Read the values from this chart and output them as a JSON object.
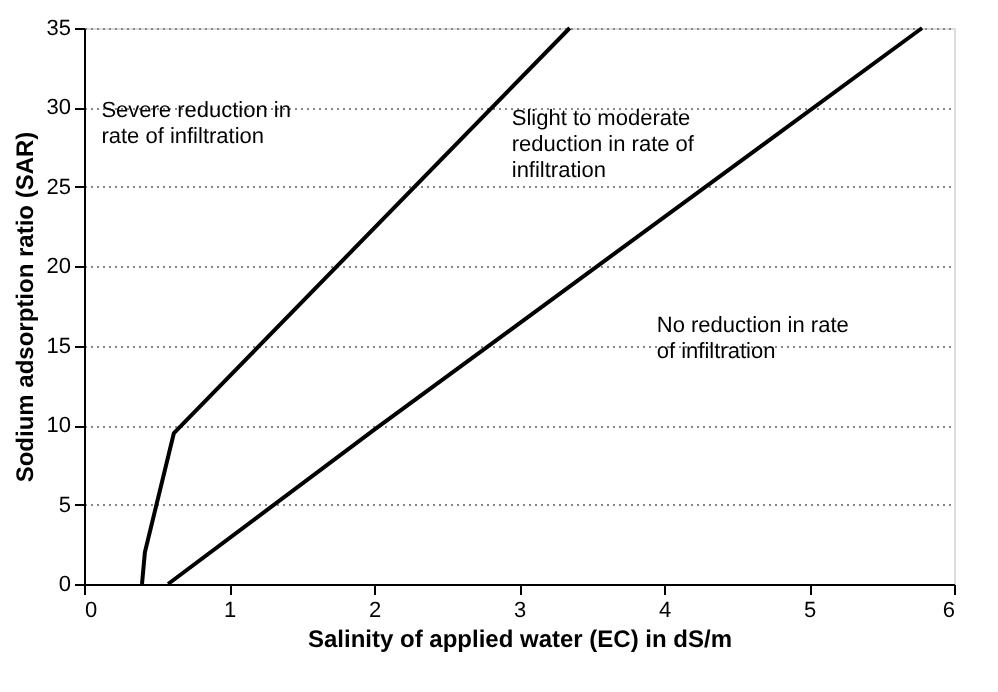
{
  "chart_data": {
    "type": "line",
    "xlabel": "Salinity of applied water (EC) in dS/m",
    "ylabel": "Sodium adsorption ratio (SAR)",
    "xlim": [
      0,
      6
    ],
    "ylim": [
      0,
      35
    ],
    "xticks": [
      0,
      1,
      2,
      3,
      4,
      5,
      6
    ],
    "yticks": [
      0,
      5,
      10,
      15,
      20,
      25,
      30,
      35
    ],
    "grid": "y",
    "marker": "none",
    "line_style": "solid",
    "series": [
      {
        "color": "#000000",
        "x": [
          0.4,
          0.42,
          0.62,
          3.35
        ],
        "values": [
          0,
          2,
          9.5,
          35
        ]
      },
      {
        "color": "#000000",
        "x": [
          0.58,
          2.0,
          5.78
        ],
        "values": [
          0,
          9.7,
          35
        ]
      }
    ],
    "annotations": [
      "Severe reduction in\nrate of infiltration",
      "Slight to moderate\nreduction in rate of\ninfiltration",
      "No reduction in rate\nof infiltration"
    ]
  }
}
